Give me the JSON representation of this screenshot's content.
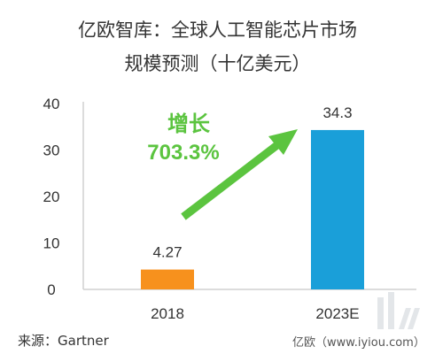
{
  "chart_data": {
    "type": "bar",
    "title_line1": "亿欧智库：全球人工智能芯片市场",
    "title_line2": "规模预测（十亿美元）",
    "categories": [
      "2018",
      "2023E"
    ],
    "values": [
      4.27,
      34.3
    ],
    "value_labels": [
      "4.27",
      "34.3"
    ],
    "bar_colors": [
      "#F7911D",
      "#1A9FD9"
    ],
    "ylim": [
      0,
      40
    ],
    "yticks": [
      "0",
      "10",
      "20",
      "30",
      "40"
    ],
    "grid": false,
    "annotation": {
      "line1": "增长",
      "line2": "703.3%",
      "color": "#5BC43F"
    }
  },
  "footer": {
    "source": "来源：Gartner",
    "credit": "亿欧（www.iyiou.com）"
  }
}
